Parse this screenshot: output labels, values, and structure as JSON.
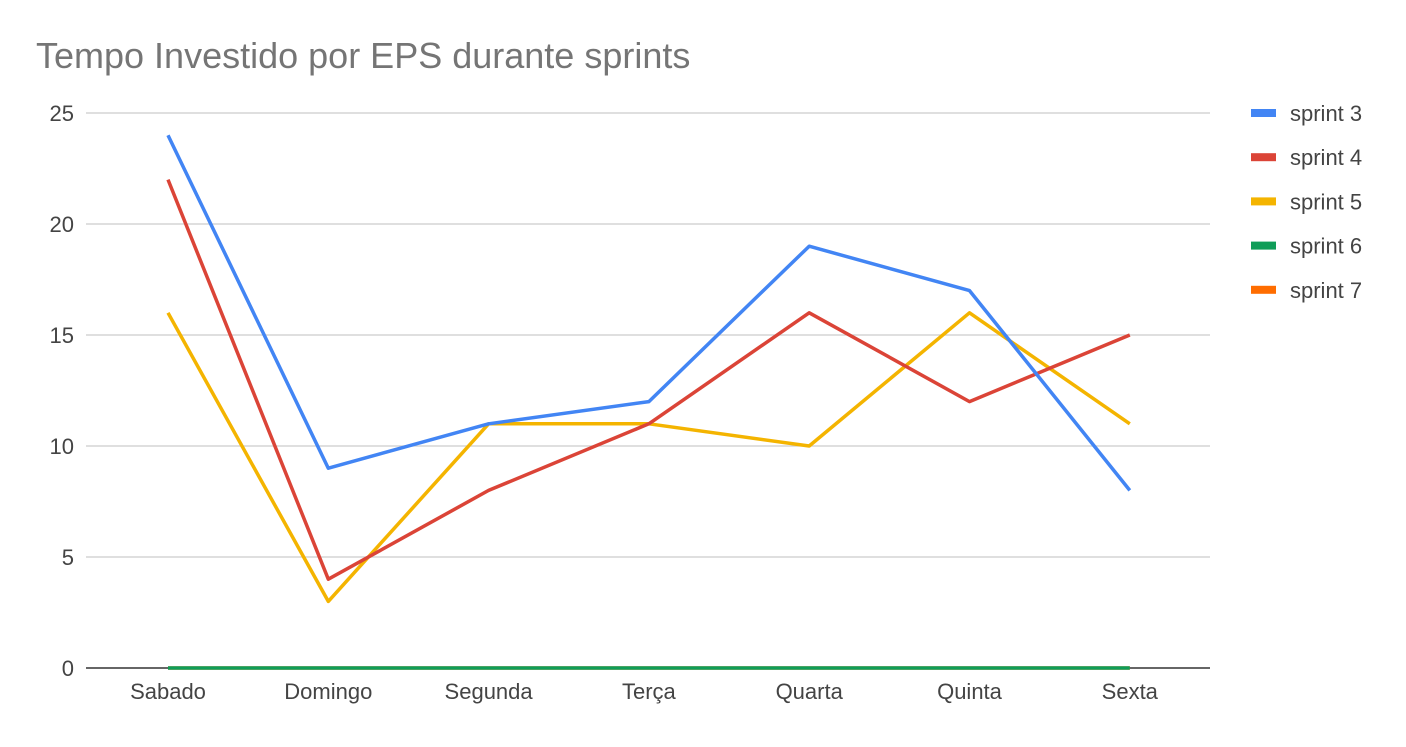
{
  "chart_data": {
    "type": "line",
    "title": "Tempo Investido por EPS durante sprints",
    "xlabel": "",
    "ylabel": "",
    "categories": [
      "Sabado",
      "Domingo",
      "Segunda",
      "Terça",
      "Quarta",
      "Quinta",
      "Sexta"
    ],
    "ylim": [
      0,
      25
    ],
    "yticks": [
      0,
      5,
      10,
      15,
      20,
      25
    ],
    "grid": true,
    "legend_position": "right",
    "series": [
      {
        "name": "sprint 3",
        "color": "#4285f4",
        "values": [
          24,
          9,
          11,
          12,
          19,
          17,
          8
        ]
      },
      {
        "name": "sprint 4",
        "color": "#db4437",
        "values": [
          22,
          4,
          8,
          11,
          16,
          12,
          15
        ]
      },
      {
        "name": "sprint 5",
        "color": "#f4b400",
        "values": [
          16,
          3,
          11,
          11,
          10,
          16,
          11
        ]
      },
      {
        "name": "sprint 6",
        "color": "#0f9d58",
        "values": [
          0,
          0,
          0,
          0,
          0,
          0,
          0
        ]
      },
      {
        "name": "sprint 7",
        "color": "#ff6d00",
        "values": [
          0,
          0,
          0,
          0,
          0,
          0,
          0
        ]
      }
    ]
  }
}
